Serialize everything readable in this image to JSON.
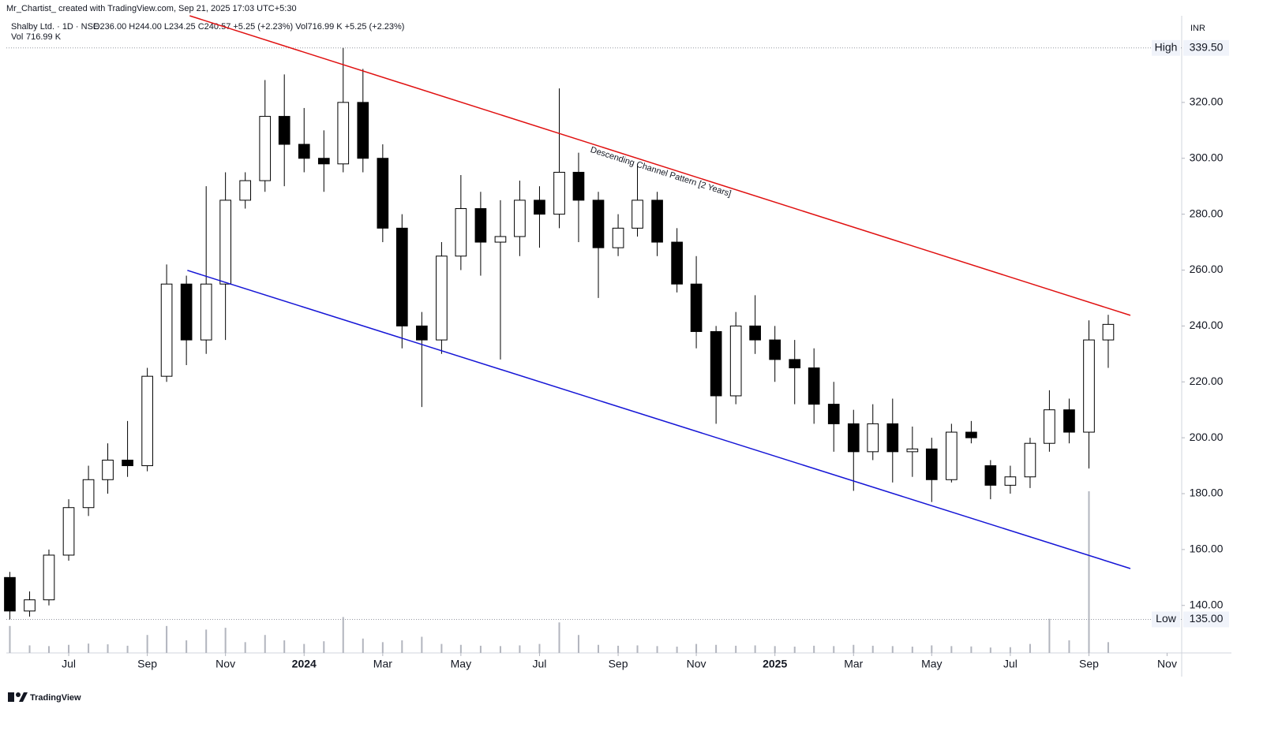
{
  "chart_data": {
    "type": "candlestick",
    "source": "Mr_Chartist_ created with TradingView.com, Sep 21, 2025 17:03 UTC+5:30",
    "symbol": "Shalby Ltd. · 1D · NSE",
    "ohlc_label": "O236.00 H244.00 L234.25 C240.57 +5.25 (+2.23%) Vol716.99 K +5.25 (+2.23%)",
    "volume_label": "Vol",
    "volume_value_label": "716.99 K",
    "currency": "INR",
    "brand": "TradingView",
    "annotation": "Descending Channel Pattern [2 Years]",
    "x": [
      2023.375,
      2023.417,
      2023.458,
      2023.5,
      2023.542,
      2023.583,
      2023.625,
      2023.667,
      2023.708,
      2023.75,
      2023.792,
      2023.833,
      2023.875,
      2023.917,
      2023.958,
      2024.0,
      2024.042,
      2024.083,
      2024.125,
      2024.167,
      2024.208,
      2024.25,
      2024.292,
      2024.333,
      2024.375,
      2024.417,
      2024.458,
      2024.5,
      2024.542,
      2024.583,
      2024.625,
      2024.667,
      2024.708,
      2024.75,
      2024.792,
      2024.833,
      2024.875,
      2024.917,
      2024.958,
      2025.0,
      2025.042,
      2025.083,
      2025.125,
      2025.167,
      2025.208,
      2025.25,
      2025.292,
      2025.333,
      2025.375,
      2025.417,
      2025.458,
      2025.5,
      2025.542,
      2025.583,
      2025.625,
      2025.667,
      2025.708
    ],
    "open": [
      150,
      138,
      142,
      158,
      175,
      185,
      192,
      190,
      222,
      255,
      235,
      255,
      285,
      292,
      315,
      305,
      300,
      298,
      320,
      300,
      275,
      240,
      235,
      265,
      282,
      270,
      272,
      285,
      280,
      295,
      285,
      268,
      275,
      285,
      270,
      255,
      238,
      215,
      240,
      235,
      228,
      225,
      212,
      205,
      195,
      205,
      195,
      196,
      185,
      202,
      190,
      183,
      186,
      198,
      210,
      202,
      235
    ],
    "high": [
      152,
      145,
      160,
      178,
      190,
      198,
      206,
      225,
      262,
      258,
      290,
      295,
      295,
      328,
      330,
      318,
      310,
      339.5,
      332,
      305,
      280,
      245,
      270,
      294,
      288,
      285,
      292,
      290,
      325,
      302,
      288,
      280,
      298,
      288,
      275,
      265,
      240,
      245,
      251,
      240,
      235,
      232,
      220,
      210,
      212,
      214,
      204,
      200,
      205,
      206,
      192,
      190,
      200,
      217,
      214,
      242,
      244
    ],
    "low": [
      135,
      136,
      140,
      156,
      172,
      180,
      186,
      188,
      220,
      226,
      230,
      235,
      282,
      288,
      290,
      295,
      288,
      295,
      295,
      270,
      232,
      211,
      230,
      260,
      258,
      228,
      265,
      268,
      275,
      270,
      250,
      265,
      272,
      265,
      252,
      232,
      205,
      212,
      230,
      220,
      212,
      205,
      195,
      181,
      192,
      184,
      186,
      177,
      184,
      198,
      178,
      180,
      182,
      195,
      198,
      189,
      225
    ],
    "close": [
      138,
      142,
      158,
      175,
      185,
      192,
      190,
      222,
      255,
      235,
      255,
      285,
      292,
      315,
      305,
      300,
      298,
      320,
      300,
      275,
      240,
      235,
      265,
      282,
      270,
      272,
      285,
      280,
      295,
      285,
      268,
      275,
      285,
      270,
      255,
      238,
      215,
      240,
      235,
      228,
      225,
      212,
      205,
      195,
      205,
      195,
      196,
      185,
      202,
      200,
      183,
      186,
      198,
      210,
      202,
      235,
      240.57
    ],
    "volume": [
      1500,
      420,
      380,
      450,
      520,
      480,
      400,
      1000,
      1500,
      700,
      1300,
      1400,
      600,
      1000,
      700,
      500,
      650,
      2000,
      800,
      600,
      700,
      900,
      500,
      450,
      400,
      380,
      420,
      500,
      1700,
      1000,
      450,
      400,
      420,
      380,
      350,
      500,
      450,
      400,
      420,
      380,
      350,
      400,
      380,
      450,
      400,
      380,
      350,
      420,
      380,
      360,
      300,
      320,
      500,
      1900,
      700,
      9000,
      600
    ],
    "up_color": "#ffffff",
    "down_color": "#000000",
    "wick_color": "#000000",
    "volume_color": "#b2b5be",
    "trendlines": [
      {
        "color": "#e01010",
        "x": [
          2023.757,
          2025.755
        ],
        "y": [
          351.0,
          243.8
        ]
      },
      {
        "color": "#1515d6",
        "x": [
          2023.752,
          2025.755
        ],
        "y": [
          259.9,
          153.2
        ]
      }
    ],
    "high_marker": {
      "label": "High",
      "value": 339.5,
      "value_label": "339.50"
    },
    "low_marker": {
      "label": "Low",
      "value": 135,
      "value_label": "135.00"
    },
    "xlim": [
      2023.3675,
      2025.864
    ],
    "ylim": [
      123,
      351
    ],
    "xticks": [
      {
        "value": 2023.5,
        "label": "Jul"
      },
      {
        "value": 2023.667,
        "label": "Sep"
      },
      {
        "value": 2023.833,
        "label": "Nov"
      },
      {
        "value": 2024.0,
        "label": "2024"
      },
      {
        "value": 2024.167,
        "label": "Mar"
      },
      {
        "value": 2024.333,
        "label": "May"
      },
      {
        "value": 2024.5,
        "label": "Jul"
      },
      {
        "value": 2024.667,
        "label": "Sep"
      },
      {
        "value": 2024.833,
        "label": "Nov"
      },
      {
        "value": 2025.0,
        "label": "2025"
      },
      {
        "value": 2025.167,
        "label": "Mar"
      },
      {
        "value": 2025.333,
        "label": "May"
      },
      {
        "value": 2025.5,
        "label": "Jul"
      },
      {
        "value": 2025.667,
        "label": "Sep"
      },
      {
        "value": 2025.833,
        "label": "Nov"
      }
    ],
    "yticks": [
      {
        "value": 140,
        "label": "140.00"
      },
      {
        "value": 160,
        "label": "160.00"
      },
      {
        "value": 180,
        "label": "180.00"
      },
      {
        "value": 200,
        "label": "200.00"
      },
      {
        "value": 220,
        "label": "220.00"
      },
      {
        "value": 240,
        "label": "240.00"
      },
      {
        "value": 260,
        "label": "260.00"
      },
      {
        "value": 280,
        "label": "280.00"
      },
      {
        "value": 300,
        "label": "300.00"
      },
      {
        "value": 320,
        "label": "320.00"
      }
    ]
  }
}
